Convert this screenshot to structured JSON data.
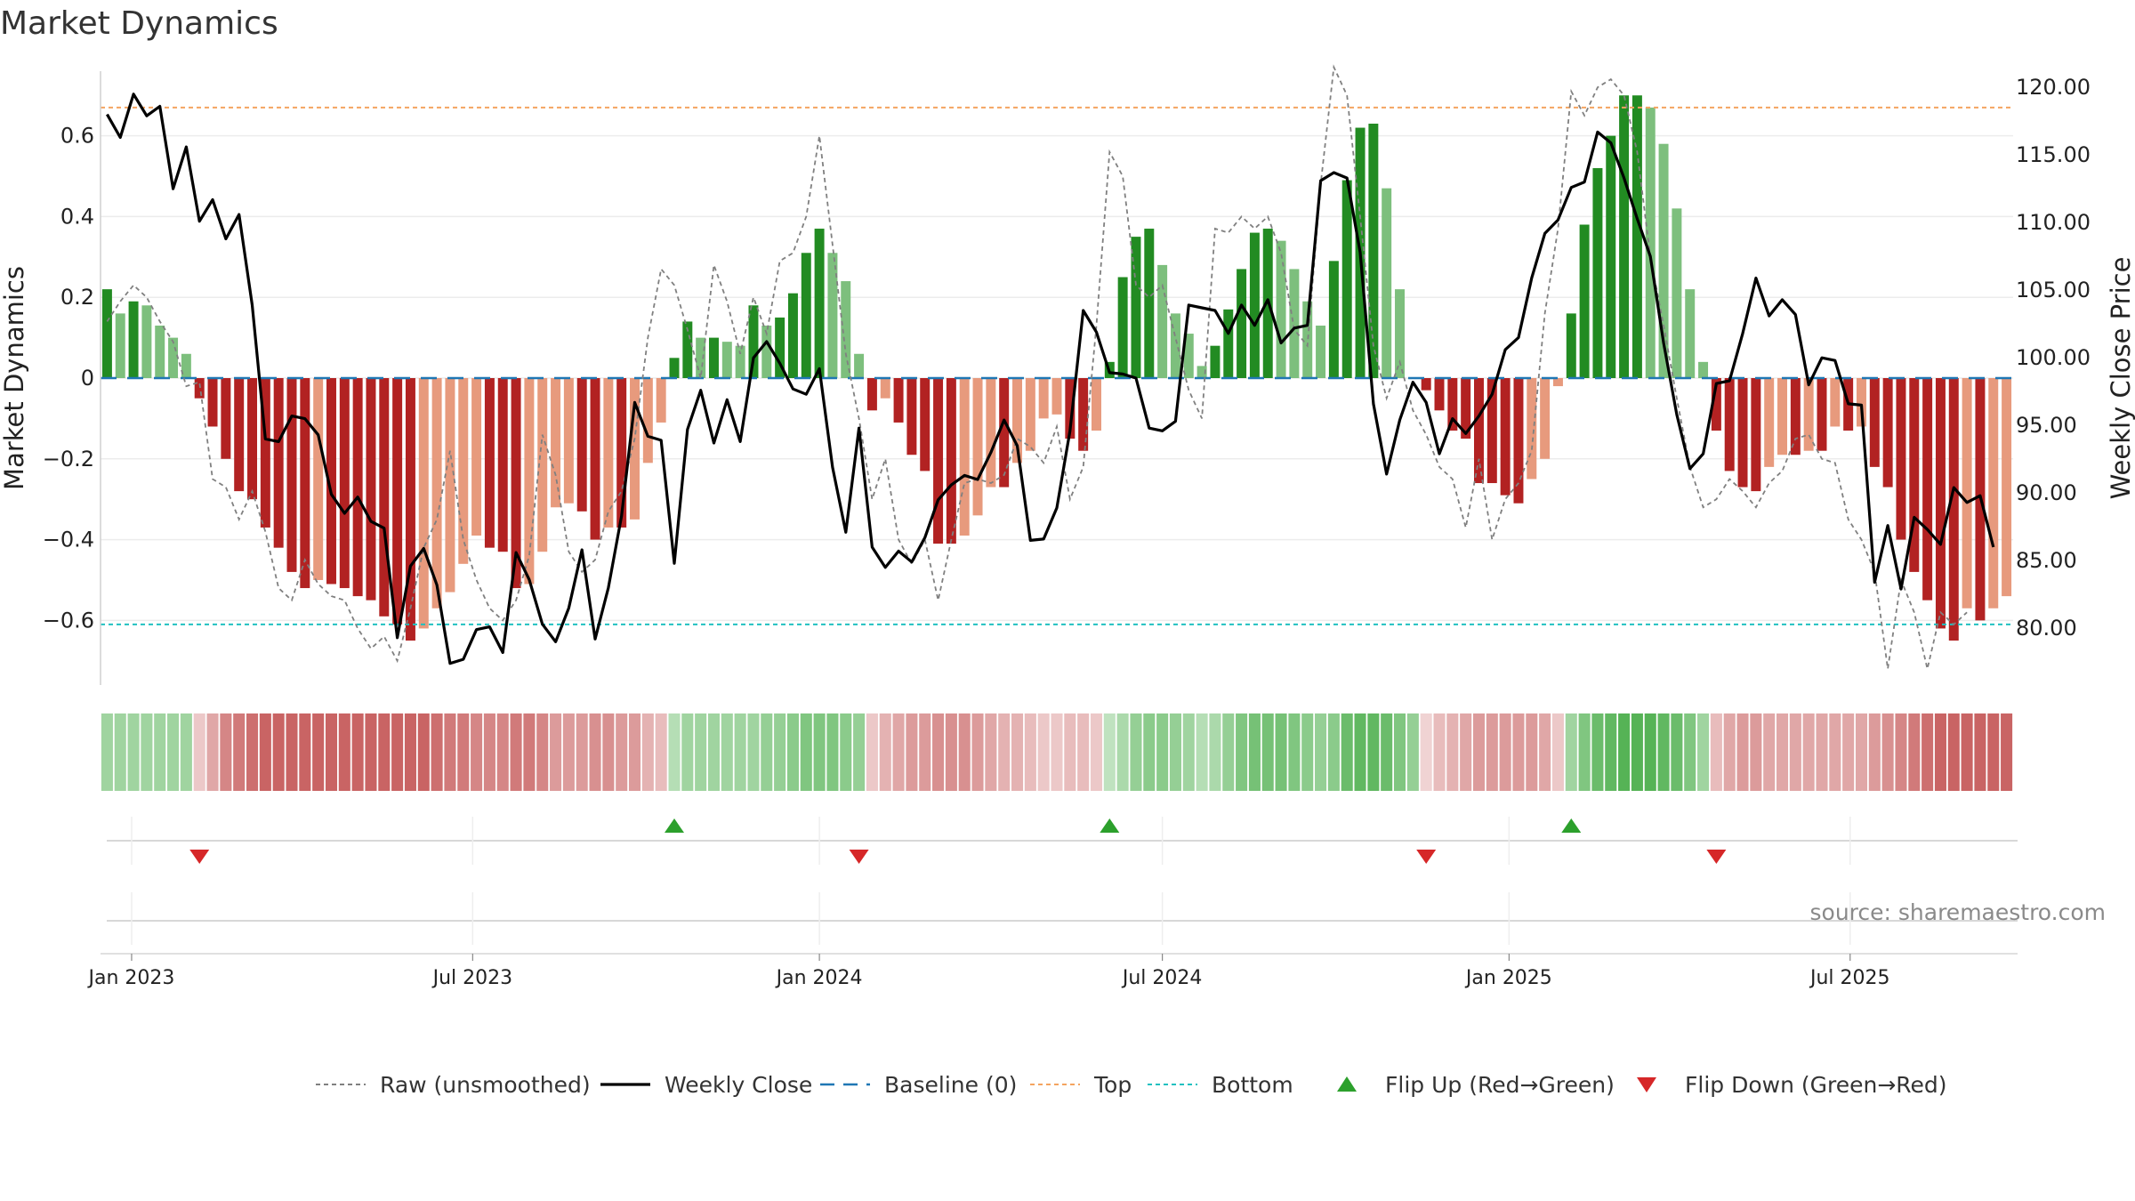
{
  "title": "Market Dynamics",
  "source": "source: sharemaestro.com",
  "colors": {
    "green_strong": "#228b22",
    "green_light": "#7dbf7d",
    "red_strong": "#b22222",
    "red_light": "#e79a7d",
    "close_line": "#000000",
    "raw_line": "#808080",
    "baseline": "#1f77b4",
    "top_line": "#f4a460",
    "bottom_line": "#20c0c0",
    "flip_up": "#2ca02c",
    "flip_down": "#d62728"
  },
  "legend": [
    {
      "key": "raw",
      "label": "Raw (unsmoothed)",
      "style": "dotted-gray"
    },
    {
      "key": "close",
      "label": "Weekly Close",
      "style": "solid-black"
    },
    {
      "key": "baseline",
      "label": "Baseline (0)",
      "style": "dashed-blue"
    },
    {
      "key": "top",
      "label": "Top",
      "style": "dotted-orange"
    },
    {
      "key": "bottom",
      "label": "Bottom",
      "style": "dotted-cyan"
    },
    {
      "key": "flip_up",
      "label": "Flip Up (Red→Green)",
      "style": "triangle-up-green"
    },
    {
      "key": "flip_down",
      "label": "Flip Down (Green→Red)",
      "style": "triangle-down-red"
    }
  ],
  "chart_data": {
    "type": "bar",
    "title": "Market Dynamics",
    "ylabel_left": "Market Dynamics",
    "ylabel_right": "Weekly Close Price",
    "x_start_date": "2022-12-19",
    "x_step_days": 7,
    "x_tick_labels": [
      "Jan 2023",
      "Jul 2023",
      "Jan 2024",
      "Jul 2024",
      "Jan 2025",
      "Jul 2025"
    ],
    "x_tick_dates": [
      "2023-01-01",
      "2023-07-01",
      "2024-01-01",
      "2024-07-01",
      "2025-01-01",
      "2025-07-01"
    ],
    "ylim_left": [
      -0.76,
      0.76
    ],
    "yticks_left": [
      0.6,
      0.4,
      0.2,
      0,
      -0.2,
      -0.4,
      -0.6
    ],
    "ytick_labels_left": [
      "0.6",
      "0.4",
      "0.2",
      "0",
      "−0.2",
      "−0.4",
      "−0.6"
    ],
    "ylim_right": [
      75.8,
      121.2
    ],
    "yticks_right": [
      120,
      115,
      110,
      105,
      100,
      95,
      90,
      85,
      80
    ],
    "ytick_labels_right": [
      "120.00",
      "115.00",
      "110.00",
      "105.00",
      "100.00",
      "95.00",
      "90.00",
      "85.00",
      "80.00"
    ],
    "top_level": 0.67,
    "bottom_level": -0.61,
    "baseline_level": 0,
    "dynamics": [
      0.22,
      0.16,
      0.19,
      0.18,
      0.13,
      0.1,
      0.06,
      -0.05,
      -0.12,
      -0.2,
      -0.28,
      -0.3,
      -0.37,
      -0.42,
      -0.48,
      -0.52,
      -0.5,
      -0.51,
      -0.52,
      -0.54,
      -0.55,
      -0.59,
      -0.61,
      -0.65,
      -0.62,
      -0.57,
      -0.53,
      -0.46,
      -0.39,
      -0.42,
      -0.43,
      -0.52,
      -0.51,
      -0.43,
      -0.32,
      -0.31,
      -0.33,
      -0.4,
      -0.37,
      -0.37,
      -0.35,
      -0.21,
      -0.11,
      0.05,
      0.14,
      0.1,
      0.1,
      0.09,
      0.08,
      0.18,
      0.13,
      0.15,
      0.21,
      0.31,
      0.37,
      0.31,
      0.24,
      0.06,
      -0.08,
      -0.05,
      -0.11,
      -0.19,
      -0.23,
      -0.41,
      -0.41,
      -0.39,
      -0.34,
      -0.27,
      -0.27,
      -0.21,
      -0.18,
      -0.1,
      -0.09,
      -0.15,
      -0.18,
      -0.13,
      0.04,
      0.25,
      0.35,
      0.37,
      0.28,
      0.16,
      0.11,
      0.03,
      0.08,
      0.17,
      0.27,
      0.36,
      0.37,
      0.34,
      0.27,
      0.19,
      0.13,
      0.29,
      0.49,
      0.62,
      0.63,
      0.47,
      0.22,
      0.0,
      -0.03,
      -0.08,
      -0.13,
      -0.15,
      -0.26,
      -0.26,
      -0.29,
      -0.31,
      -0.25,
      -0.2,
      -0.02,
      0.16,
      0.38,
      0.52,
      0.6,
      0.7,
      0.7,
      0.67,
      0.58,
      0.42,
      0.22,
      0.04,
      -0.13,
      -0.23,
      -0.27,
      -0.28,
      -0.22,
      -0.19,
      -0.19,
      -0.18,
      -0.18,
      -0.12,
      -0.13,
      -0.12,
      -0.22,
      -0.27,
      -0.4,
      -0.48,
      -0.55,
      -0.62,
      -0.65,
      -0.57,
      -0.6,
      -0.57,
      -0.54
    ],
    "raw": [
      0.14,
      0.19,
      0.23,
      0.2,
      0.14,
      0.09,
      -0.02,
      -0.01,
      -0.25,
      -0.27,
      -0.35,
      -0.28,
      -0.38,
      -0.52,
      -0.55,
      -0.45,
      -0.51,
      -0.54,
      -0.55,
      -0.62,
      -0.67,
      -0.64,
      -0.7,
      -0.57,
      -0.42,
      -0.35,
      -0.18,
      -0.4,
      -0.5,
      -0.57,
      -0.6,
      -0.55,
      -0.44,
      -0.14,
      -0.24,
      -0.43,
      -0.48,
      -0.45,
      -0.33,
      -0.28,
      -0.15,
      0.1,
      0.27,
      0.23,
      0.12,
      0.0,
      0.28,
      0.19,
      0.06,
      0.2,
      0.11,
      0.29,
      0.31,
      0.4,
      0.6,
      0.33,
      0.06,
      -0.1,
      -0.3,
      -0.2,
      -0.4,
      -0.46,
      -0.4,
      -0.55,
      -0.4,
      -0.26,
      -0.25,
      -0.26,
      -0.24,
      -0.15,
      -0.17,
      -0.21,
      -0.12,
      -0.3,
      -0.22,
      0.13,
      0.56,
      0.5,
      0.23,
      0.2,
      0.23,
      0.1,
      -0.03,
      -0.1,
      0.37,
      0.36,
      0.4,
      0.37,
      0.4,
      0.31,
      0.12,
      0.08,
      0.48,
      0.77,
      0.7,
      0.4,
      0.08,
      -0.05,
      0.04,
      -0.08,
      -0.14,
      -0.22,
      -0.25,
      -0.37,
      -0.2,
      -0.4,
      -0.3,
      -0.26,
      -0.18,
      0.16,
      0.37,
      0.71,
      0.65,
      0.72,
      0.74,
      0.7,
      0.56,
      0.3,
      0.13,
      -0.05,
      -0.22,
      -0.32,
      -0.3,
      -0.25,
      -0.28,
      -0.32,
      -0.26,
      -0.23,
      -0.15,
      -0.14,
      -0.2,
      -0.21,
      -0.35,
      -0.4,
      -0.48,
      -0.72,
      -0.5,
      -0.58,
      -0.72,
      -0.58,
      -0.61,
      -0.58
    ],
    "weekly_close": [
      118.0,
      116.3,
      119.5,
      117.9,
      118.6,
      112.5,
      115.6,
      110.1,
      111.7,
      108.8,
      110.6,
      103.9,
      94.0,
      93.8,
      95.7,
      95.5,
      94.3,
      89.9,
      88.5,
      89.7,
      87.9,
      87.4,
      79.3,
      84.6,
      85.9,
      83.2,
      77.4,
      77.7,
      79.9,
      80.1,
      78.2,
      85.6,
      83.6,
      80.3,
      79.0,
      81.5,
      85.8,
      79.2,
      83.0,
      88.3,
      96.7,
      94.2,
      93.9,
      84.8,
      94.7,
      97.6,
      93.7,
      96.9,
      93.8,
      100.0,
      101.2,
      99.6,
      97.7,
      97.3,
      99.2,
      91.9,
      87.1,
      94.8,
      86.0,
      84.5,
      85.7,
      84.9,
      86.7,
      89.5,
      90.6,
      91.3,
      91.0,
      93.0,
      95.4,
      93.5,
      86.5,
      86.6,
      88.9,
      94.6,
      103.5,
      101.9,
      98.9,
      98.8,
      98.5,
      94.8,
      94.6,
      95.3,
      103.9,
      103.7,
      103.5,
      101.8,
      103.9,
      102.4,
      104.3,
      101.1,
      102.2,
      102.4,
      113.1,
      113.7,
      113.3,
      107.8,
      96.6,
      91.4,
      95.4,
      98.2,
      96.7,
      92.9,
      95.5,
      94.4,
      95.7,
      97.3,
      100.6,
      101.5,
      105.9,
      109.2,
      110.2,
      112.6,
      113.0,
      116.7,
      115.9,
      113.3,
      110.3,
      107.5,
      101.1,
      95.8,
      91.8,
      92.9,
      98.1,
      98.3,
      101.8,
      105.9,
      103.1,
      104.3,
      103.2,
      98.0,
      100.0,
      99.8,
      96.6,
      96.5,
      83.4,
      87.6,
      82.9,
      88.2,
      87.3,
      86.2,
      90.4,
      89.3,
      89.8,
      86.0
    ],
    "flip_up_indices": [
      43,
      76,
      111
    ],
    "flip_down_indices": [
      7,
      57,
      100,
      122
    ],
    "regime_strength": [
      0.45,
      0.45,
      0.45,
      0.45,
      0.45,
      0.45,
      0.45,
      0.25,
      0.4,
      0.55,
      0.6,
      0.65,
      0.7,
      0.7,
      0.7,
      0.7,
      0.7,
      0.7,
      0.7,
      0.7,
      0.7,
      0.7,
      0.7,
      0.7,
      0.7,
      0.65,
      0.6,
      0.6,
      0.55,
      0.55,
      0.55,
      0.6,
      0.6,
      0.55,
      0.45,
      0.45,
      0.45,
      0.5,
      0.5,
      0.45,
      0.45,
      0.35,
      0.3,
      0.35,
      0.45,
      0.45,
      0.45,
      0.45,
      0.45,
      0.45,
      0.5,
      0.5,
      0.55,
      0.6,
      0.6,
      0.6,
      0.55,
      0.5,
      0.25,
      0.35,
      0.4,
      0.45,
      0.45,
      0.5,
      0.5,
      0.5,
      0.45,
      0.4,
      0.35,
      0.35,
      0.3,
      0.25,
      0.25,
      0.3,
      0.3,
      0.25,
      0.3,
      0.4,
      0.5,
      0.55,
      0.55,
      0.5,
      0.45,
      0.35,
      0.4,
      0.5,
      0.6,
      0.65,
      0.65,
      0.65,
      0.6,
      0.55,
      0.5,
      0.55,
      0.7,
      0.75,
      0.75,
      0.7,
      0.6,
      0.5,
      0.2,
      0.3,
      0.35,
      0.4,
      0.45,
      0.45,
      0.45,
      0.45,
      0.45,
      0.4,
      0.25,
      0.45,
      0.6,
      0.7,
      0.75,
      0.8,
      0.8,
      0.8,
      0.75,
      0.7,
      0.6,
      0.45,
      0.3,
      0.4,
      0.45,
      0.45,
      0.4,
      0.4,
      0.4,
      0.4,
      0.4,
      0.4,
      0.4,
      0.4,
      0.45,
      0.5,
      0.55,
      0.6,
      0.65,
      0.7,
      0.7,
      0.7,
      0.7,
      0.7,
      0.7
    ]
  }
}
